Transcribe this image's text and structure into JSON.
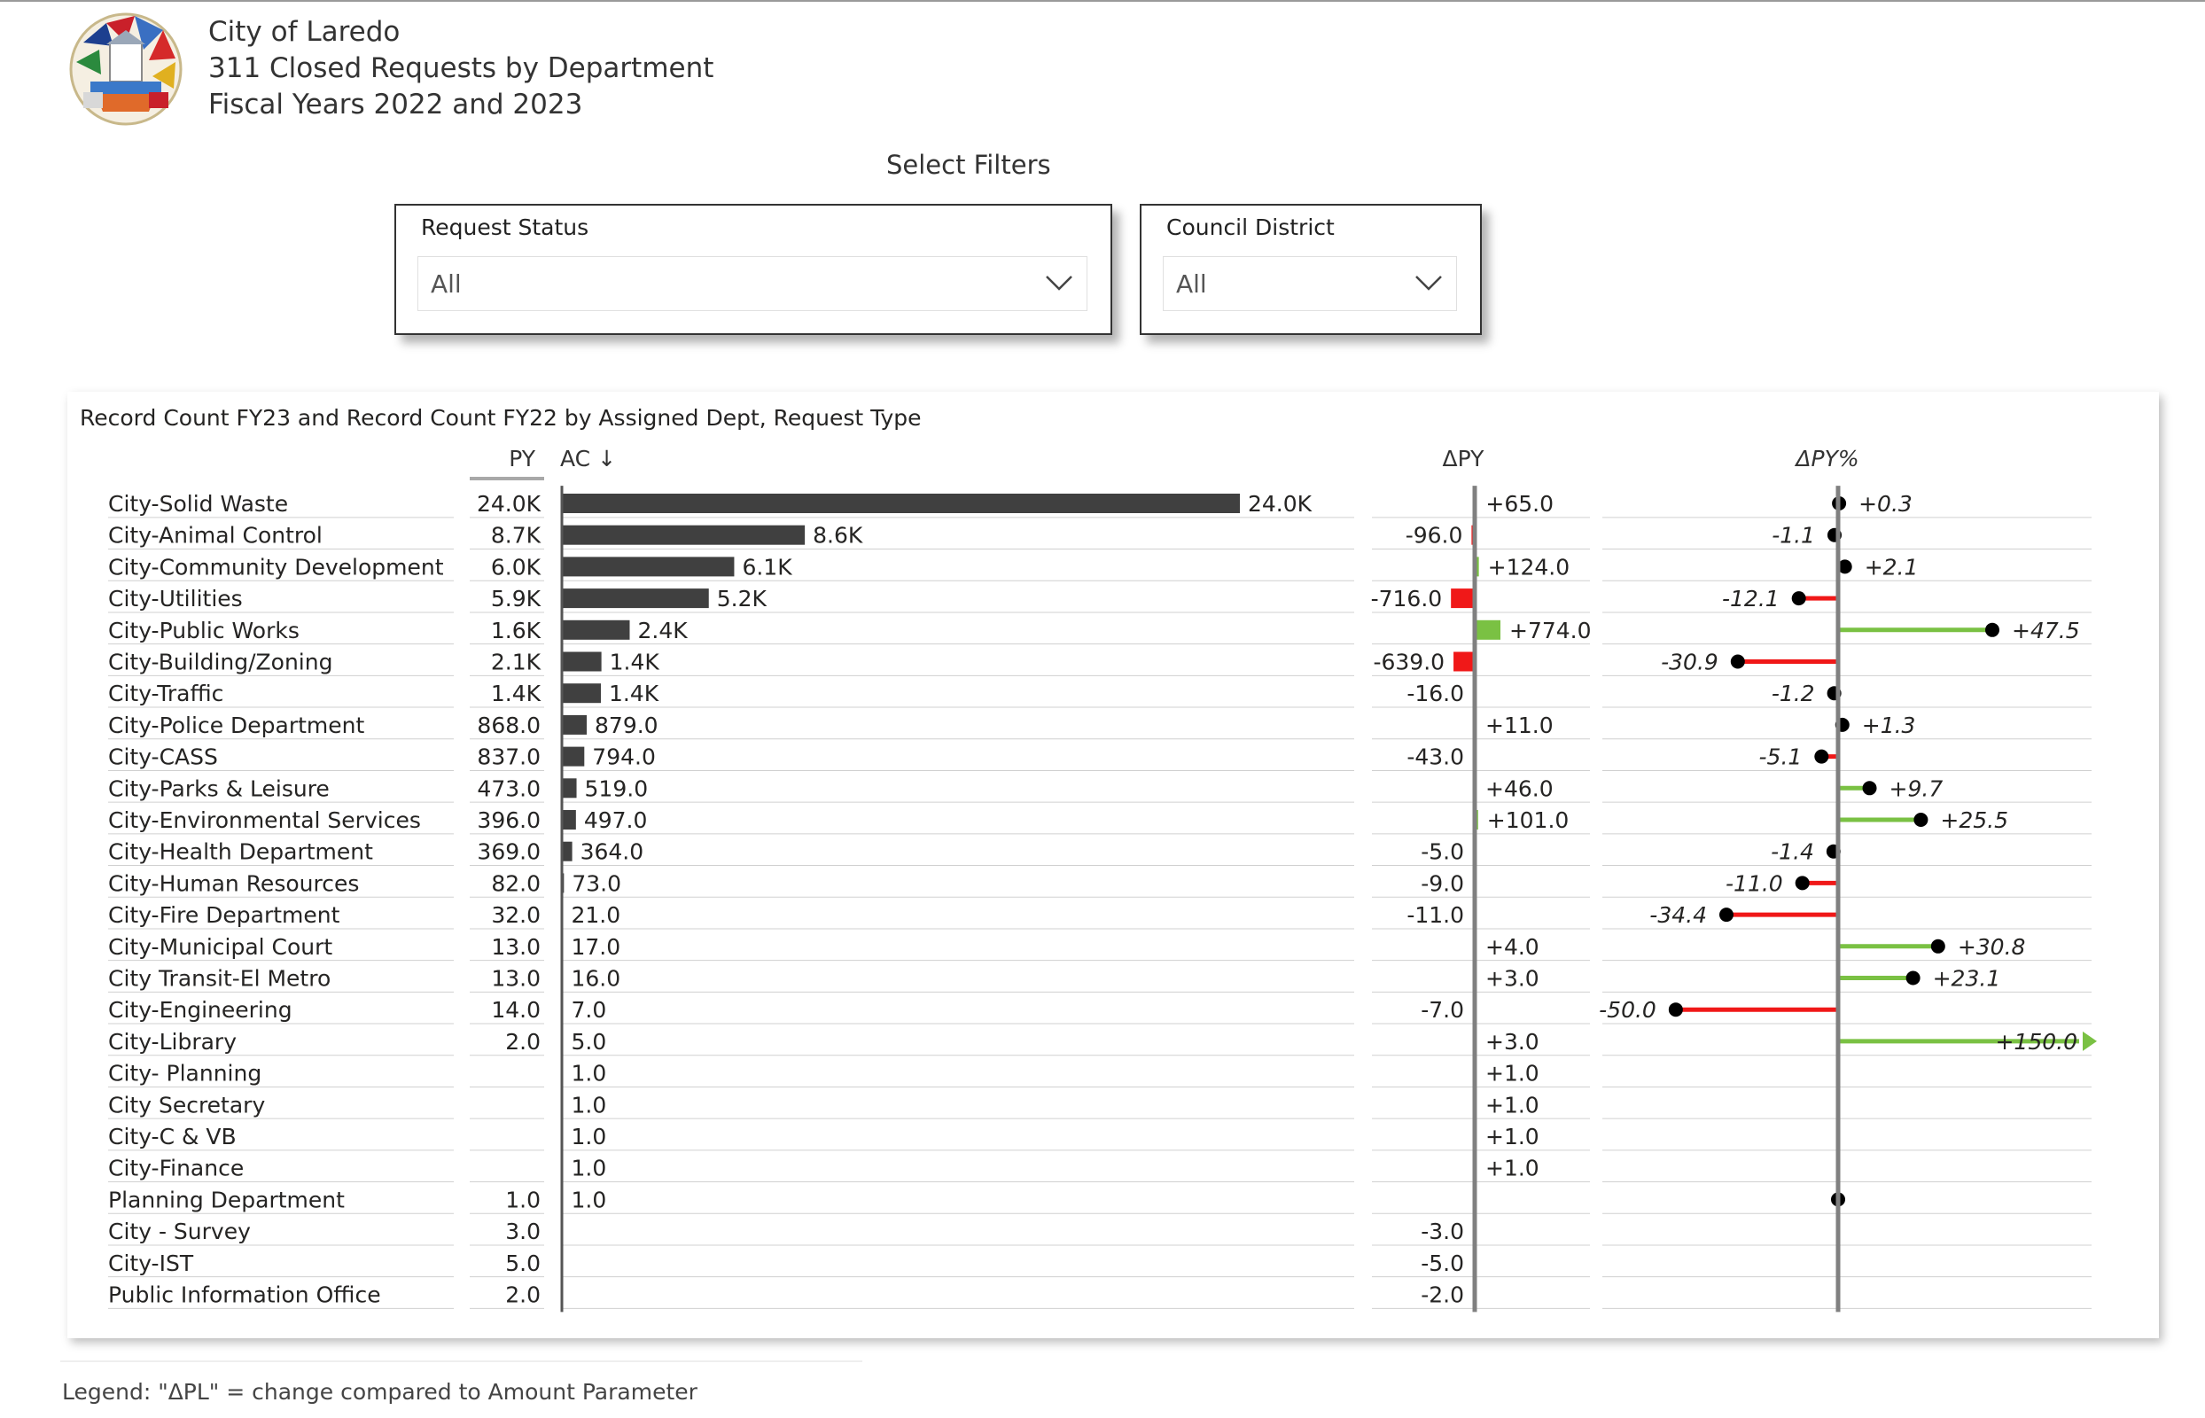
{
  "header": {
    "line1": "City of Laredo",
    "line2": "311 Closed Requests by Department",
    "line3": "Fiscal Years 2022 and 2023",
    "logo_icon": "city-seal-icon"
  },
  "filters": {
    "heading": "Select Filters",
    "request_status": {
      "label": "Request Status",
      "value": "All"
    },
    "council_district": {
      "label": "Council District",
      "value": "All"
    }
  },
  "colors": {
    "bar_ac": "#404040",
    "positive": "#7ac143",
    "negative": "#f01818",
    "axis": "#808080",
    "grid": "#d0d0d0",
    "marker": "#000000"
  },
  "chart_data": {
    "type": "table",
    "title": "Record Count FY23 and Record Count FY22 by Assigned Dept, Request Type",
    "columns": {
      "py": "PY",
      "ac": "AC ↓",
      "dpy": "ΔPY",
      "dpypct": "ΔPY%"
    },
    "rows": [
      {
        "name": "City-Solid Waste",
        "py": 24000,
        "py_label": "24.0K",
        "ac": 24000,
        "ac_label": "24.0K",
        "dpy": 65,
        "dpy_label": "+65.0",
        "pct": 0.3,
        "pct_label": "+0.3"
      },
      {
        "name": "City-Animal Control",
        "py": 8700,
        "py_label": "8.7K",
        "ac": 8600,
        "ac_label": "8.6K",
        "dpy": -96,
        "dpy_label": "-96.0",
        "pct": -1.1,
        "pct_label": "-1.1"
      },
      {
        "name": "City-Community Development",
        "py": 6000,
        "py_label": "6.0K",
        "ac": 6100,
        "ac_label": "6.1K",
        "dpy": 124,
        "dpy_label": "+124.0",
        "pct": 2.1,
        "pct_label": "+2.1"
      },
      {
        "name": "City-Utilities",
        "py": 5900,
        "py_label": "5.9K",
        "ac": 5200,
        "ac_label": "5.2K",
        "dpy": -716,
        "dpy_label": "-716.0",
        "pct": -12.1,
        "pct_label": "-12.1"
      },
      {
        "name": "City-Public Works",
        "py": 1600,
        "py_label": "1.6K",
        "ac": 2400,
        "ac_label": "2.4K",
        "dpy": 774,
        "dpy_label": "+774.0",
        "pct": 47.5,
        "pct_label": "+47.5"
      },
      {
        "name": "City-Building/Zoning",
        "py": 2100,
        "py_label": "2.1K",
        "ac": 1400,
        "ac_label": "1.4K",
        "dpy": -639,
        "dpy_label": "-639.0",
        "pct": -30.9,
        "pct_label": "-30.9"
      },
      {
        "name": "City-Traffic",
        "py": 1400,
        "py_label": "1.4K",
        "ac": 1380,
        "ac_label": "1.4K",
        "dpy": -16,
        "dpy_label": "-16.0",
        "pct": -1.2,
        "pct_label": "-1.2"
      },
      {
        "name": "City-Police Department",
        "py": 868,
        "py_label": "868.0",
        "ac": 879,
        "ac_label": "879.0",
        "dpy": 11,
        "dpy_label": "+11.0",
        "pct": 1.3,
        "pct_label": "+1.3"
      },
      {
        "name": "City-CASS",
        "py": 837,
        "py_label": "837.0",
        "ac": 794,
        "ac_label": "794.0",
        "dpy": -43,
        "dpy_label": "-43.0",
        "pct": -5.1,
        "pct_label": "-5.1"
      },
      {
        "name": "City-Parks & Leisure",
        "py": 473,
        "py_label": "473.0",
        "ac": 519,
        "ac_label": "519.0",
        "dpy": 46,
        "dpy_label": "+46.0",
        "pct": 9.7,
        "pct_label": "+9.7"
      },
      {
        "name": "City-Environmental Services",
        "py": 396,
        "py_label": "396.0",
        "ac": 497,
        "ac_label": "497.0",
        "dpy": 101,
        "dpy_label": "+101.0",
        "pct": 25.5,
        "pct_label": "+25.5"
      },
      {
        "name": "City-Health Department",
        "py": 369,
        "py_label": "369.0",
        "ac": 364,
        "ac_label": "364.0",
        "dpy": -5,
        "dpy_label": "-5.0",
        "pct": -1.4,
        "pct_label": "-1.4"
      },
      {
        "name": "City-Human Resources",
        "py": 82,
        "py_label": "82.0",
        "ac": 73,
        "ac_label": "73.0",
        "dpy": -9,
        "dpy_label": "-9.0",
        "pct": -11.0,
        "pct_label": "-11.0"
      },
      {
        "name": "City-Fire Department",
        "py": 32,
        "py_label": "32.0",
        "ac": 21,
        "ac_label": "21.0",
        "dpy": -11,
        "dpy_label": "-11.0",
        "pct": -34.4,
        "pct_label": "-34.4"
      },
      {
        "name": "City-Municipal Court",
        "py": 13,
        "py_label": "13.0",
        "ac": 17,
        "ac_label": "17.0",
        "dpy": 4,
        "dpy_label": "+4.0",
        "pct": 30.8,
        "pct_label": "+30.8"
      },
      {
        "name": "City Transit-El Metro",
        "py": 13,
        "py_label": "13.0",
        "ac": 16,
        "ac_label": "16.0",
        "dpy": 3,
        "dpy_label": "+3.0",
        "pct": 23.1,
        "pct_label": "+23.1"
      },
      {
        "name": "City-Engineering",
        "py": 14,
        "py_label": "14.0",
        "ac": 7,
        "ac_label": "7.0",
        "dpy": -7,
        "dpy_label": "-7.0",
        "pct": -50.0,
        "pct_label": "-50.0"
      },
      {
        "name": "City-Library",
        "py": 2,
        "py_label": "2.0",
        "ac": 5,
        "ac_label": "5.0",
        "dpy": 3,
        "dpy_label": "+3.0",
        "pct": 150.0,
        "pct_label": "+150.0",
        "pct_capped": true
      },
      {
        "name": "City- Planning",
        "py": null,
        "py_label": "",
        "ac": 1,
        "ac_label": "1.0",
        "dpy": 1,
        "dpy_label": "+1.0",
        "pct": null,
        "pct_label": ""
      },
      {
        "name": "City Secretary",
        "py": null,
        "py_label": "",
        "ac": 1,
        "ac_label": "1.0",
        "dpy": 1,
        "dpy_label": "+1.0",
        "pct": null,
        "pct_label": ""
      },
      {
        "name": "City-C & VB",
        "py": null,
        "py_label": "",
        "ac": 1,
        "ac_label": "1.0",
        "dpy": 1,
        "dpy_label": "+1.0",
        "pct": null,
        "pct_label": ""
      },
      {
        "name": "City-Finance",
        "py": null,
        "py_label": "",
        "ac": 1,
        "ac_label": "1.0",
        "dpy": 1,
        "dpy_label": "+1.0",
        "pct": null,
        "pct_label": ""
      },
      {
        "name": "Planning Department",
        "py": 1,
        "py_label": "1.0",
        "ac": 1,
        "ac_label": "1.0",
        "dpy": 0,
        "dpy_label": "",
        "pct": 0,
        "pct_label": ""
      },
      {
        "name": "City - Survey",
        "py": 3,
        "py_label": "3.0",
        "ac": null,
        "ac_label": "",
        "dpy": -3,
        "dpy_label": "-3.0",
        "pct": null,
        "pct_label": ""
      },
      {
        "name": "City-IST",
        "py": 5,
        "py_label": "5.0",
        "ac": null,
        "ac_label": "",
        "dpy": -5,
        "dpy_label": "-5.0",
        "pct": null,
        "pct_label": ""
      },
      {
        "name": "Public Information Office",
        "py": 2,
        "py_label": "2.0",
        "ac": null,
        "ac_label": "",
        "dpy": -2,
        "dpy_label": "-2.0",
        "pct": null,
        "pct_label": ""
      }
    ]
  },
  "legend_text": "Legend: \"ΔPL\" = change compared to Amount Parameter"
}
